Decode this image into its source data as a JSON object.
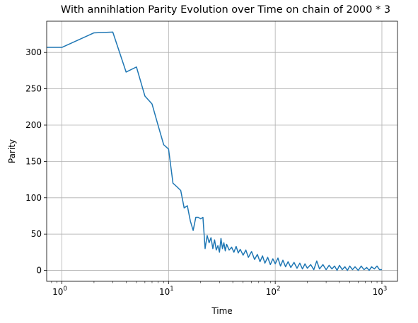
{
  "chart_data": {
    "type": "line",
    "title": "With annihlation Parity Evolution over Time on chain of 2000 * 3",
    "xlabel": "Time",
    "ylabel": "Parity",
    "x_scale": "log",
    "xlim": [
      0.72,
      1400
    ],
    "ylim": [
      -15,
      343
    ],
    "grid": true,
    "x_ticks": [
      {
        "base": "10",
        "exp": "0"
      },
      {
        "base": "10",
        "exp": "1"
      },
      {
        "base": "10",
        "exp": "2"
      },
      {
        "base": "10",
        "exp": "3"
      }
    ],
    "y_ticks": [
      "0",
      "50",
      "100",
      "150",
      "200",
      "250",
      "300"
    ],
    "series": [
      {
        "color": "#1f77b4",
        "points": [
          [
            0.72,
            307
          ],
          [
            1,
            307
          ],
          [
            2,
            327
          ],
          [
            3,
            328
          ],
          [
            4,
            273
          ],
          [
            5,
            280
          ],
          [
            6,
            240
          ],
          [
            7,
            229
          ],
          [
            8,
            199
          ],
          [
            9,
            173
          ],
          [
            10,
            167
          ],
          [
            11,
            120
          ],
          [
            12,
            115
          ],
          [
            13,
            110
          ],
          [
            14,
            86
          ],
          [
            15,
            89
          ],
          [
            16,
            68
          ],
          [
            17,
            55
          ],
          [
            18,
            73
          ],
          [
            19,
            73
          ],
          [
            20,
            71
          ],
          [
            21,
            73
          ],
          [
            22,
            30
          ],
          [
            23,
            48
          ],
          [
            24,
            38
          ],
          [
            25,
            45
          ],
          [
            26,
            30
          ],
          [
            27,
            42
          ],
          [
            28,
            28
          ],
          [
            29,
            34
          ],
          [
            30,
            25
          ],
          [
            31,
            44
          ],
          [
            32,
            30
          ],
          [
            33,
            38
          ],
          [
            34,
            27
          ],
          [
            35,
            36
          ],
          [
            37,
            28
          ],
          [
            39,
            32
          ],
          [
            41,
            25
          ],
          [
            43,
            33
          ],
          [
            45,
            24
          ],
          [
            47,
            29
          ],
          [
            50,
            21
          ],
          [
            53,
            28
          ],
          [
            56,
            18
          ],
          [
            60,
            26
          ],
          [
            64,
            15
          ],
          [
            68,
            22
          ],
          [
            72,
            12
          ],
          [
            76,
            20
          ],
          [
            80,
            10
          ],
          [
            85,
            18
          ],
          [
            90,
            8
          ],
          [
            95,
            16
          ],
          [
            100,
            9
          ],
          [
            106,
            17
          ],
          [
            112,
            6
          ],
          [
            118,
            14
          ],
          [
            125,
            5
          ],
          [
            132,
            12
          ],
          [
            140,
            4
          ],
          [
            150,
            11
          ],
          [
            160,
            3
          ],
          [
            170,
            10
          ],
          [
            180,
            2
          ],
          [
            190,
            9
          ],
          [
            200,
            3
          ],
          [
            215,
            8
          ],
          [
            230,
            1
          ],
          [
            245,
            13
          ],
          [
            260,
            2
          ],
          [
            280,
            8
          ],
          [
            300,
            1
          ],
          [
            320,
            7
          ],
          [
            340,
            2
          ],
          [
            360,
            6
          ],
          [
            380,
            0
          ],
          [
            400,
            7
          ],
          [
            425,
            1
          ],
          [
            450,
            5
          ],
          [
            475,
            0
          ],
          [
            500,
            6
          ],
          [
            530,
            1
          ],
          [
            560,
            5
          ],
          [
            600,
            0
          ],
          [
            640,
            6
          ],
          [
            680,
            1
          ],
          [
            720,
            4
          ],
          [
            760,
            0
          ],
          [
            800,
            5
          ],
          [
            850,
            2
          ],
          [
            900,
            6
          ],
          [
            950,
            1
          ],
          [
            1000,
            1
          ]
        ]
      }
    ]
  }
}
